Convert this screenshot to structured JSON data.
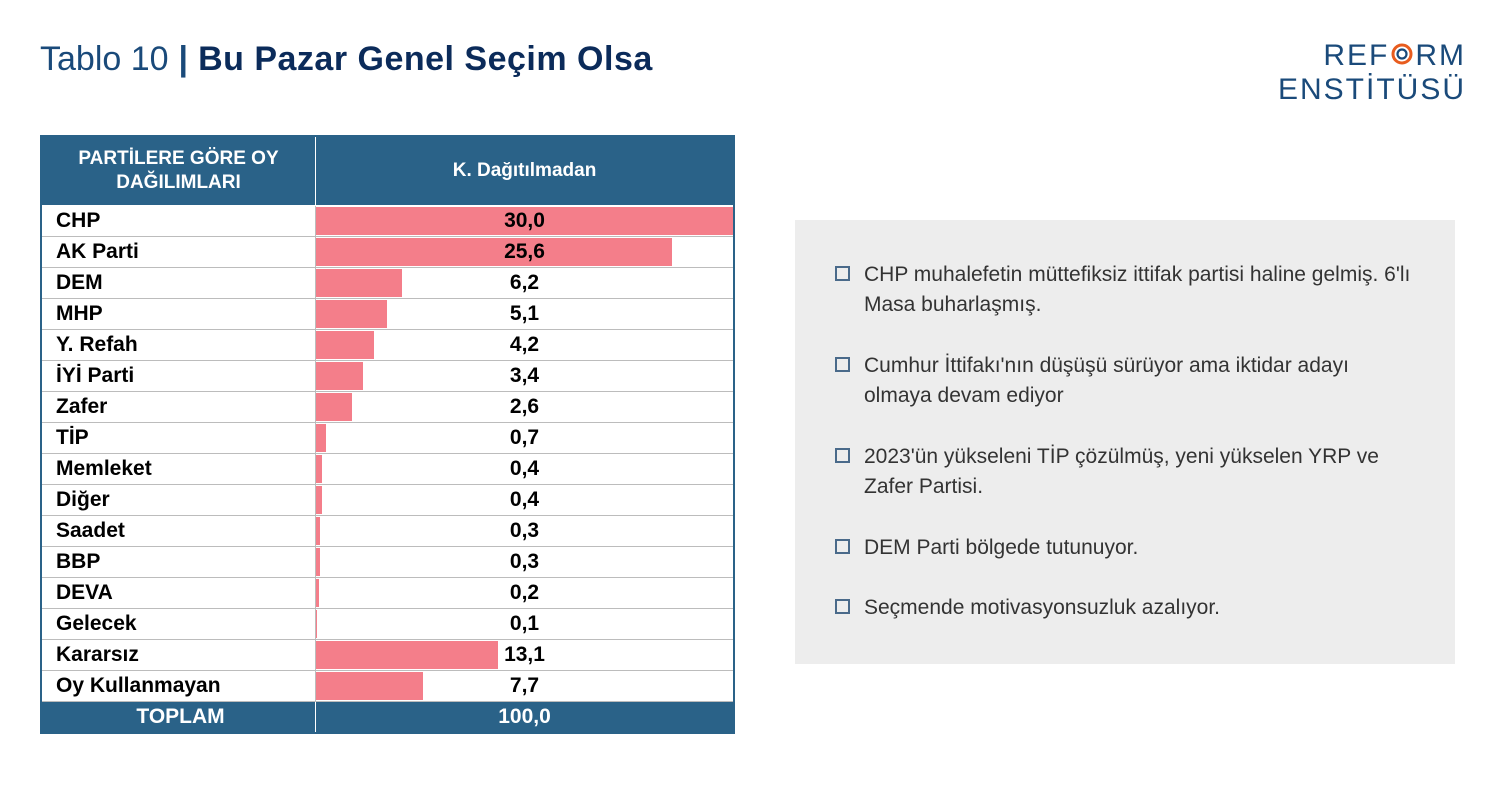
{
  "header": {
    "prefix": "Tablo 10",
    "separator": "|",
    "main": "Bu Pazar Genel Seçim Olsa"
  },
  "logo": {
    "line1_pre": "REF",
    "line1_post": "RM",
    "line2": "ENSTİTÜSÜ",
    "text_color": "#1a4a7a",
    "ring_color": "#e85c1e"
  },
  "table": {
    "type": "bar-table",
    "header_party": "PARTİLERE GÖRE OY DAĞILIMLARI",
    "header_bar": "K. Dağıtılmadan",
    "header_bg": "#2a6288",
    "header_fg": "#ffffff",
    "bar_color": "#f47e8a",
    "row_border_color": "#bcbcbc",
    "bar_max_value": 30.0,
    "label_fontsize": 21,
    "party_col_width": 275,
    "bar_col_width": 420,
    "rows": [
      {
        "party": "CHP",
        "value": 30.0,
        "label": "30,0"
      },
      {
        "party": "AK Parti",
        "value": 25.6,
        "label": "25,6"
      },
      {
        "party": "DEM",
        "value": 6.2,
        "label": "6,2"
      },
      {
        "party": "MHP",
        "value": 5.1,
        "label": "5,1"
      },
      {
        "party": "Y. Refah",
        "value": 4.2,
        "label": "4,2"
      },
      {
        "party": "İYİ Parti",
        "value": 3.4,
        "label": "3,4"
      },
      {
        "party": "Zafer",
        "value": 2.6,
        "label": "2,6"
      },
      {
        "party": "TİP",
        "value": 0.7,
        "label": "0,7"
      },
      {
        "party": "Memleket",
        "value": 0.4,
        "label": "0,4"
      },
      {
        "party": "Diğer",
        "value": 0.4,
        "label": "0,4"
      },
      {
        "party": "Saadet",
        "value": 0.3,
        "label": "0,3"
      },
      {
        "party": "BBP",
        "value": 0.3,
        "label": "0,3"
      },
      {
        "party": "DEVA",
        "value": 0.2,
        "label": "0,2"
      },
      {
        "party": "Gelecek",
        "value": 0.1,
        "label": "0,1"
      },
      {
        "party": "Kararsız",
        "value": 13.1,
        "label": "13,1"
      },
      {
        "party": "Oy Kullanmayan",
        "value": 7.7,
        "label": "7,7"
      }
    ],
    "total": {
      "party": "TOPLAM",
      "label": "100,0"
    }
  },
  "info": {
    "bg": "#ededed",
    "bullet_color": "#4a6a8a",
    "text_color": "#333333",
    "fontsize": 21,
    "items": [
      "CHP muhalefetin müttefiksiz ittifak partisi haline gelmiş. 6'lı Masa buharlaşmış.",
      "Cumhur İttifakı'nın düşüşü sürüyor ama iktidar adayı olmaya devam ediyor",
      "2023'ün yükseleni TİP çözülmüş, yeni yükselen YRP ve Zafer Partisi.",
      "DEM Parti bölgede tutunuyor.",
      "Seçmende motivasyonsuzluk azalıyor."
    ]
  }
}
